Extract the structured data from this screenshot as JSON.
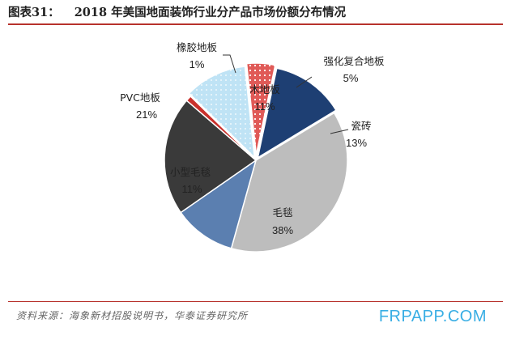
{
  "header": {
    "figure_number": "图表31：",
    "title": "2018 年美国地面装饰行业分产品市场份额分布情况"
  },
  "source_note": "资料来源：海象新材招股说明书，华泰证券研究所",
  "watermark": "FRPAPP.COM",
  "chart_data": {
    "type": "pie",
    "title": "2018 年美国地面装饰行业分产品市场份额分布情况",
    "unit": "%",
    "slices": [
      {
        "name": "瓷砖",
        "value": 13,
        "label": "13%",
        "color": "#1e3f73",
        "pattern": "none"
      },
      {
        "name": "毛毯",
        "value": 38,
        "label": "38%",
        "color": "#bdbdbd",
        "pattern": "none"
      },
      {
        "name": "小型毛毯",
        "value": 11,
        "label": "11%",
        "color": "#5b7fb0",
        "pattern": "none"
      },
      {
        "name": "PVC地板",
        "value": 21,
        "label": "21%",
        "color": "#3a3a3a",
        "pattern": "none"
      },
      {
        "name": "橡胶地板",
        "value": 1,
        "label": "1%",
        "color": "#c9302c",
        "pattern": "none"
      },
      {
        "name": "木地板",
        "value": 11,
        "label": "11%",
        "color": "#bfe3f5",
        "pattern": "dots"
      },
      {
        "name": "强化复合地板",
        "value": 5,
        "label": "5%",
        "color": "#e05a57",
        "pattern": "dots"
      }
    ]
  }
}
